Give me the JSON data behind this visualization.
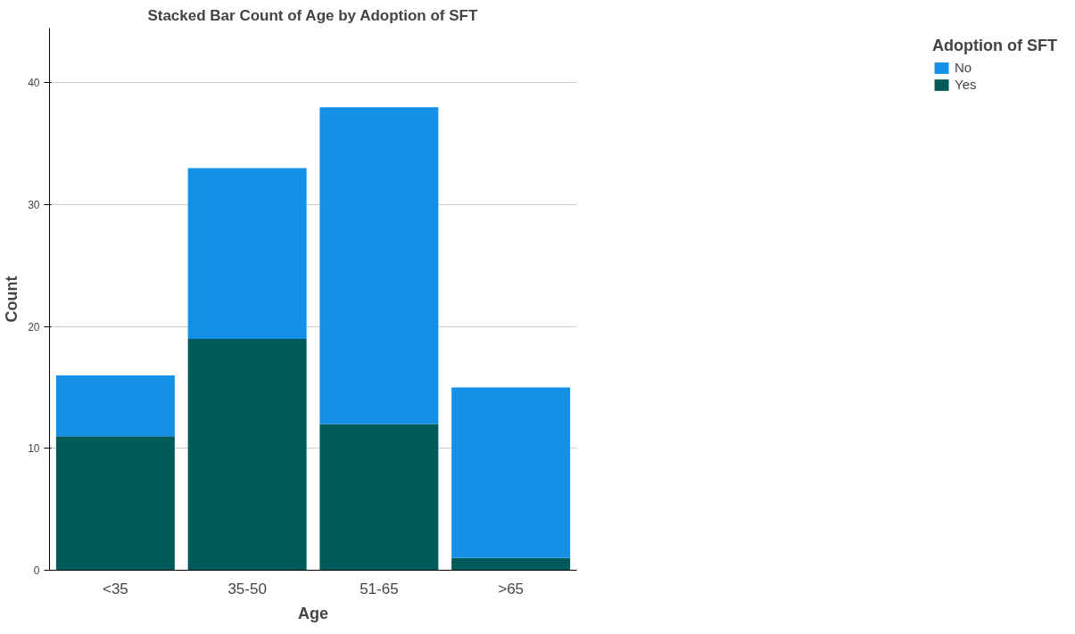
{
  "chart_data": {
    "type": "bar",
    "stacked": true,
    "title": "Stacked Bar Count of Age by Adoption of SFT",
    "xlabel": "Age",
    "ylabel": "Count",
    "legend_title": "Adoption of SFT",
    "categories": [
      "<35",
      "35-50",
      "51-65",
      ">65"
    ],
    "series": [
      {
        "name": "Yes",
        "color": "#005a5a",
        "values": [
          11,
          19,
          12,
          1
        ]
      },
      {
        "name": "No",
        "color": "#1491e6",
        "values": [
          5,
          14,
          26,
          14
        ]
      }
    ],
    "ylim": [
      0,
      44.5
    ],
    "yticks": [
      0,
      10,
      20,
      30,
      40
    ],
    "grid": "y",
    "legend": "top right"
  }
}
